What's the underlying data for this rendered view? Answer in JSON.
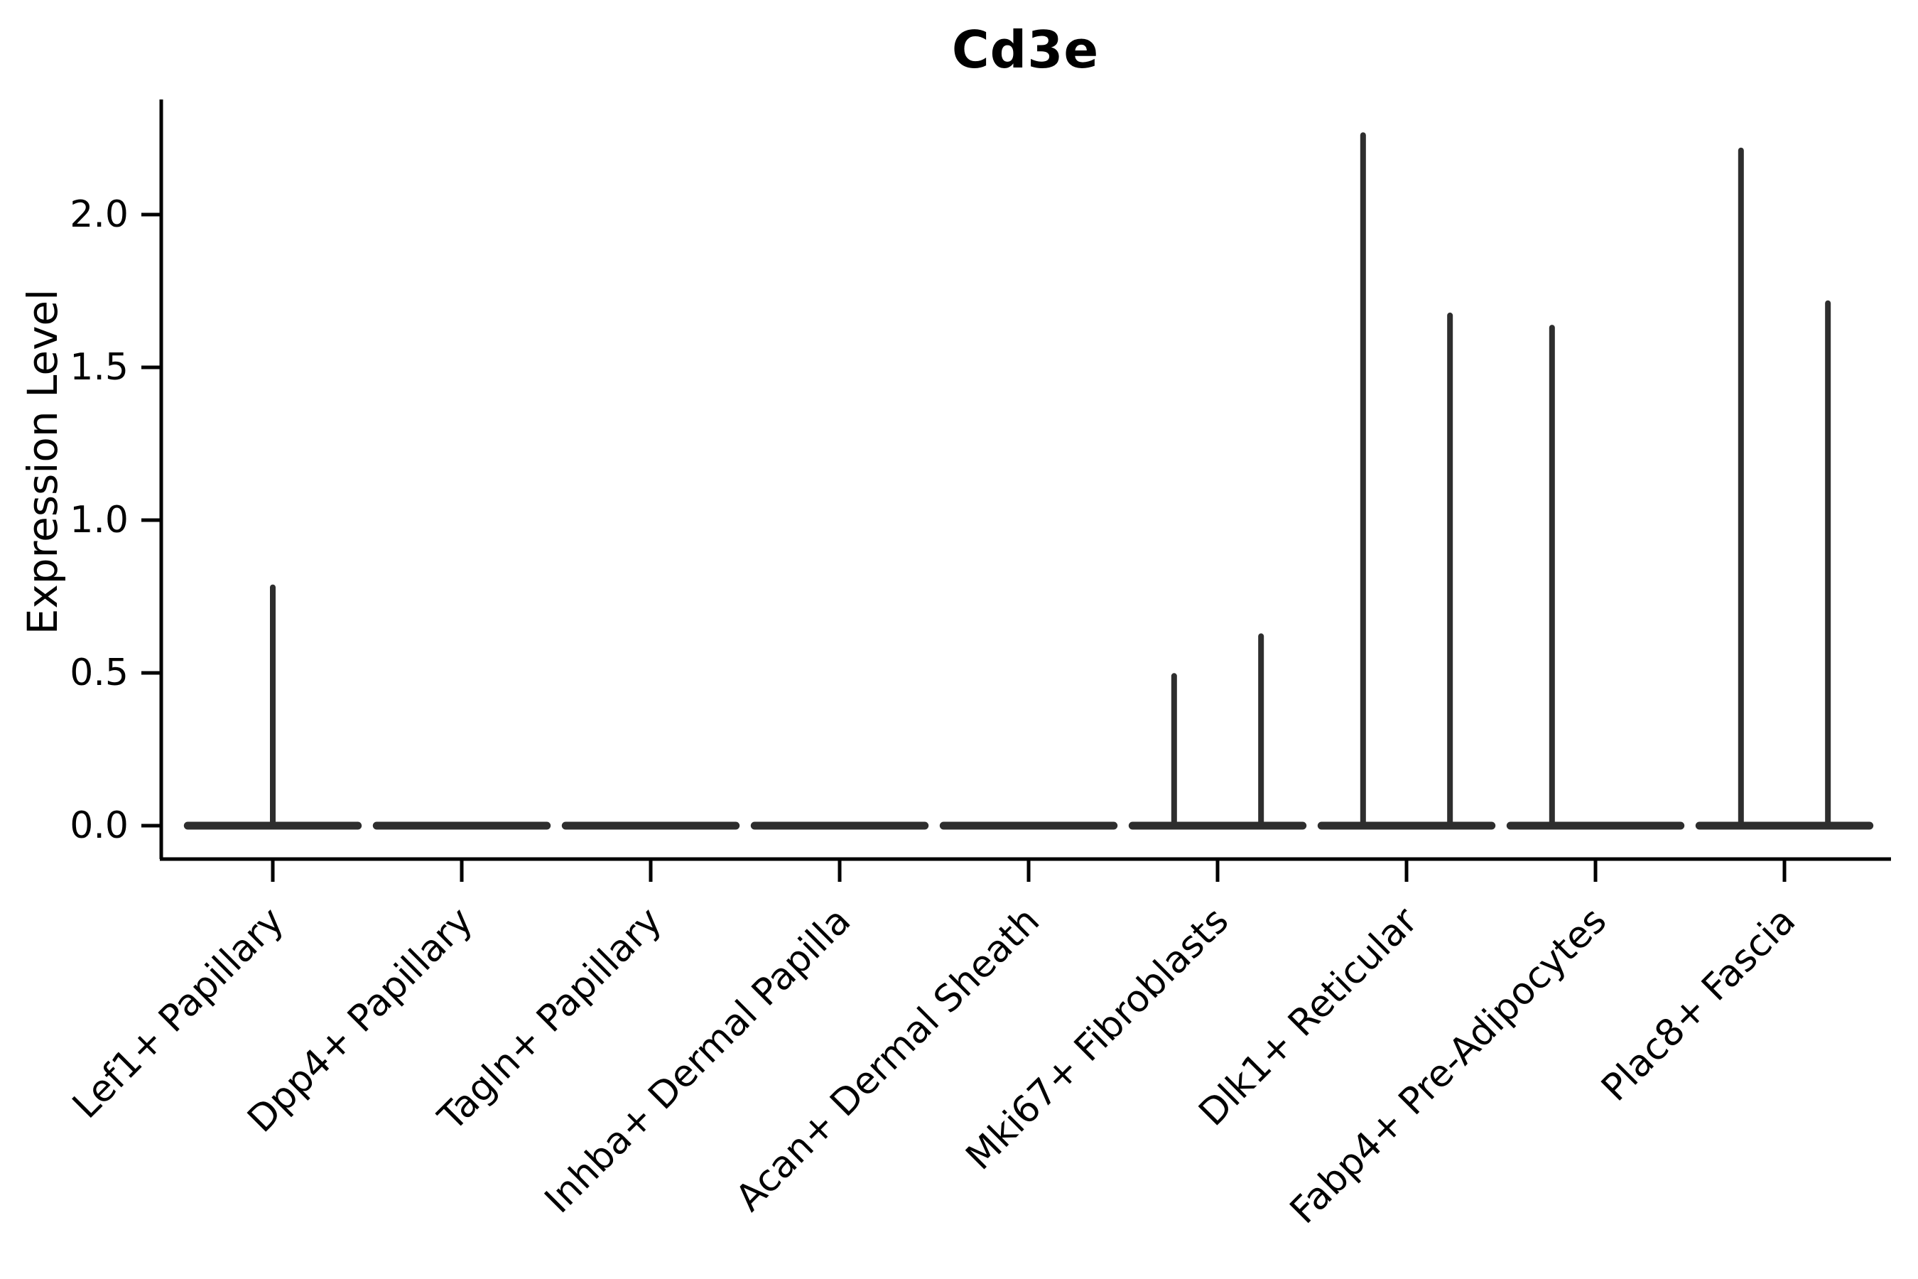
{
  "chart_data": {
    "type": "violin",
    "title": "Cd3e",
    "ylabel": "Expression Level",
    "xlabel": "",
    "yticks": [
      "0.0",
      "0.5",
      "1.0",
      "1.5",
      "2.0"
    ],
    "ylim": [
      -0.11,
      2.38
    ],
    "grid": false,
    "legend": "none",
    "categories": [
      "Lef1+ Papillary",
      "Dpp4+ Papillary",
      "Tagln+ Papillary",
      "Inhba+ Dermal Papilla",
      "Acan+ Dermal Sheath",
      "Mki67+ Fibroblasts",
      "Dlk1+ Reticular",
      "Fabp4+ Pre-Adipocytes",
      "Plac8+ Fascia"
    ],
    "series": [
      {
        "category": "Lef1+ Papillary",
        "violins": [
          {
            "offset": 0.0,
            "max": 0.78
          }
        ]
      },
      {
        "category": "Dpp4+ Papillary",
        "violins": [
          {
            "offset": 0.0,
            "max": 0.0
          }
        ]
      },
      {
        "category": "Tagln+ Papillary",
        "violins": [
          {
            "offset": 0.0,
            "max": 0.0
          }
        ]
      },
      {
        "category": "Inhba+ Dermal Papilla",
        "violins": [
          {
            "offset": 0.0,
            "max": 0.0
          }
        ]
      },
      {
        "category": "Acan+ Dermal Sheath",
        "violins": [
          {
            "offset": 0.0,
            "max": 0.0
          }
        ]
      },
      {
        "category": "Mki67+ Fibroblasts",
        "violins": [
          {
            "offset": -0.23,
            "max": 0.49
          },
          {
            "offset": 0.23,
            "max": 0.62
          }
        ]
      },
      {
        "category": "Dlk1+ Reticular",
        "violins": [
          {
            "offset": -0.23,
            "max": 2.26
          },
          {
            "offset": 0.23,
            "max": 1.67
          }
        ]
      },
      {
        "category": "Fabp4+ Pre-Adipocytes",
        "violins": [
          {
            "offset": -0.23,
            "max": 1.63
          },
          {
            "offset": 0.23,
            "max": 0.0
          }
        ]
      },
      {
        "category": "Plac8+ Fascia",
        "violins": [
          {
            "offset": -0.23,
            "max": 2.21
          },
          {
            "offset": 0.23,
            "max": 1.71
          }
        ]
      }
    ],
    "violin_halfwidth": 0.45,
    "baseline_value": 0.0,
    "colors": {
      "violin_line": "#2e2e2e",
      "axis": "#000000",
      "background": "#ffffff"
    }
  }
}
